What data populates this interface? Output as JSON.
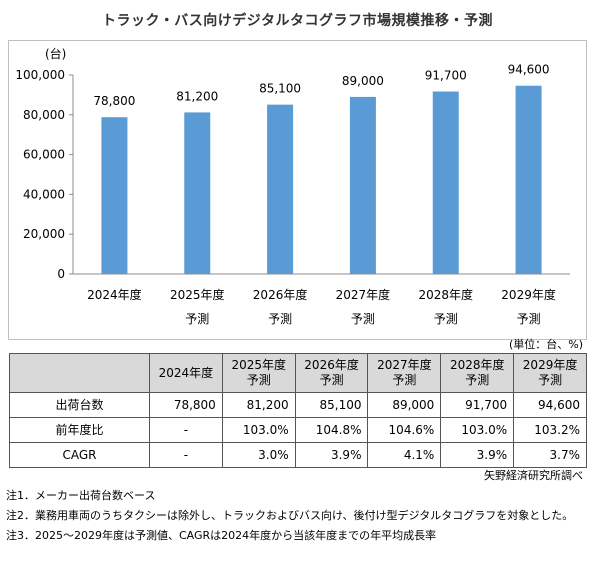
{
  "title": "トラック・バス向けデジタルタコグラフ市場規模推移・予測",
  "chart_data": {
    "type": "bar",
    "categories": [
      "2024年度",
      "2025年度",
      "2026年度",
      "2027年度",
      "2028年度",
      "2029年度"
    ],
    "category_sublabels": [
      "",
      "予測",
      "予測",
      "予測",
      "予測",
      "予測"
    ],
    "values": [
      78800,
      81200,
      85100,
      89000,
      91700,
      94600
    ],
    "value_labels": [
      "78,800",
      "81,200",
      "85,100",
      "89,000",
      "91,700",
      "94,600"
    ],
    "ylabel": "(台)",
    "ylim": [
      0,
      100000
    ],
    "yticks": [
      0,
      20000,
      40000,
      60000,
      80000,
      100000
    ],
    "ytick_labels": [
      "0",
      "20,000",
      "40,000",
      "60,000",
      "80,000",
      "100,000"
    ],
    "bar_color": "#5b9bd5",
    "grid": false
  },
  "unit_note": "(単位：台、%)",
  "table": {
    "headers": [
      {
        "line1": "",
        "line2": ""
      },
      {
        "line1": "2024年度",
        "line2": ""
      },
      {
        "line1": "2025年度",
        "line2": "予測"
      },
      {
        "line1": "2026年度",
        "line2": "予測"
      },
      {
        "line1": "2027年度",
        "line2": "予測"
      },
      {
        "line1": "2028年度",
        "line2": "予測"
      },
      {
        "line1": "2029年度",
        "line2": "予測"
      }
    ],
    "rows": [
      {
        "label": "出荷台数",
        "cells": [
          "78,800",
          "81,200",
          "85,100",
          "89,000",
          "91,700",
          "94,600"
        ]
      },
      {
        "label": "前年度比",
        "cells": [
          "-",
          "103.0%",
          "104.8%",
          "104.6%",
          "103.0%",
          "103.2%"
        ]
      },
      {
        "label": "CAGR",
        "cells": [
          "-",
          "3.0%",
          "3.9%",
          "4.1%",
          "3.9%",
          "3.7%"
        ]
      }
    ]
  },
  "source": "矢野経済研究所調べ",
  "notes": [
    "注1．メーカー出荷台数ベース",
    "注2．業務用車両のうちタクシーは除外し、トラックおよびバス向け、後付け型デジタルタコグラフを対象とした。",
    "注3．2025～2029年度は予測値、CAGRは2024年度から当該年度までの年平均成長率"
  ]
}
